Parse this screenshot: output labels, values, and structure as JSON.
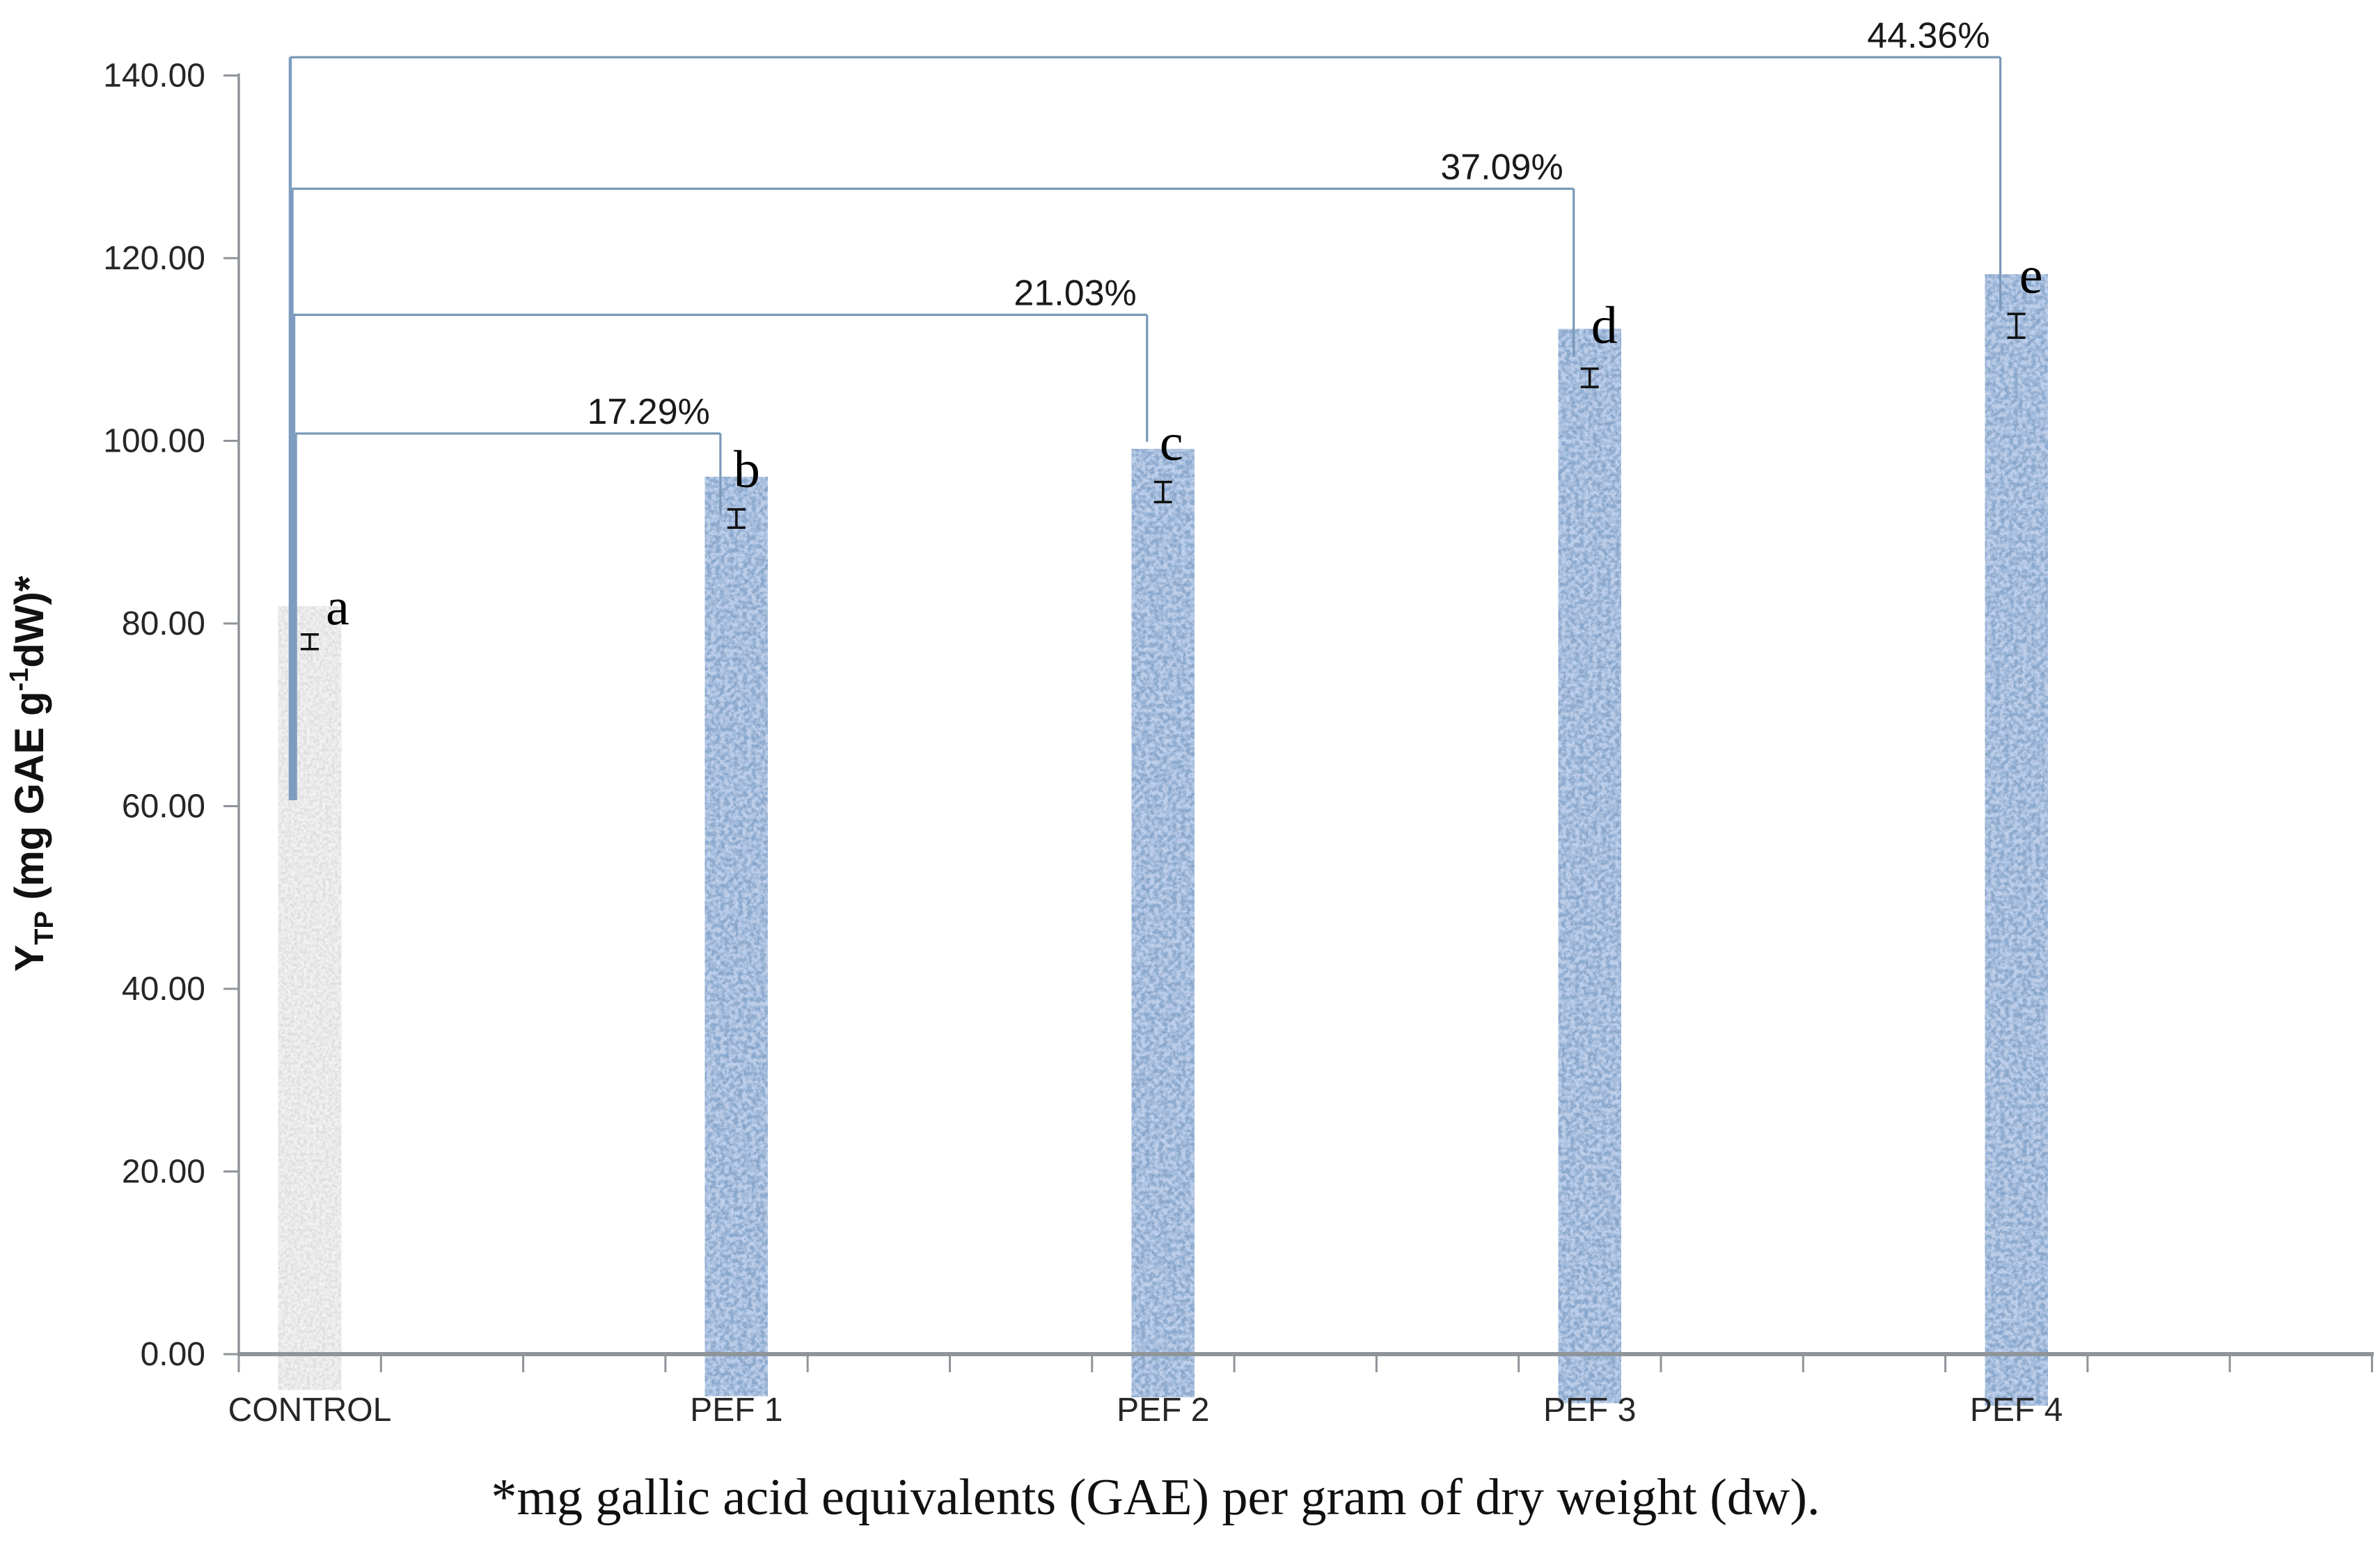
{
  "chart_data": {
    "type": "bar",
    "title": "",
    "xlabel": "",
    "ylabel_plain": "YTP (mg GAE g-1dW)*",
    "ylabel_parts": [
      {
        "t": "Y",
        "style": "normal"
      },
      {
        "t": "TP",
        "style": "sub"
      },
      {
        "t": " (mg GAE g",
        "style": "normal"
      },
      {
        "t": "-1",
        "style": "sup"
      },
      {
        "t": "dW)*",
        "style": "normal"
      }
    ],
    "footnote": "*mg gallic acid equivalents (GAE) per gram of dry weight (dw).",
    "categories": [
      "CONTROL",
      "PEF 1",
      "PEF 2",
      "PEF 3",
      "PEF 4"
    ],
    "values": [
      78.0,
      91.5,
      94.4,
      106.9,
      112.6
    ],
    "errors": [
      0.8,
      1.0,
      1.1,
      1.0,
      1.3
    ],
    "significance_letters": [
      "a",
      "b",
      "c",
      "d",
      "e"
    ],
    "bar_textures": [
      "gray-granite-speckle",
      "blue-denim-speckle",
      "blue-denim-speckle",
      "blue-denim-speckle",
      "blue-denim-speckle"
    ],
    "ylim": [
      0,
      140
    ],
    "ytick_step": 20,
    "yticks": [
      "0.00",
      "20.00",
      "40.00",
      "60.00",
      "80.00",
      "100.00",
      "120.00",
      "140.00"
    ],
    "grid": "off",
    "legend": "none",
    "brackets": [
      {
        "label": "17.29%",
        "from": "CONTROL",
        "to": "PEF 1",
        "to_index": 1,
        "level": 100.8,
        "drop_end": 91.9
      },
      {
        "label": "21.03%",
        "from": "CONTROL",
        "to": "PEF 2",
        "to_index": 2,
        "level": 113.8,
        "drop_end": 99.9
      },
      {
        "label": "37.09%",
        "from": "CONTROL",
        "to": "PEF 3",
        "to_index": 3,
        "level": 127.6,
        "drop_end": 109.2
      },
      {
        "label": "44.36%",
        "from": "CONTROL",
        "to": "PEF 4",
        "to_index": 4,
        "level": 142.0,
        "drop_end": 114.2
      }
    ],
    "colors": {
      "background": "#ffffff",
      "axis": "#8f9499",
      "tick_text": "#262626",
      "bracket_line": "#7b98b8",
      "bracket_left_vertical": "#7e9cc0",
      "error_bar": "#111111",
      "letter_text": "#000000",
      "percent_text": "#1a1a1a",
      "bar_blue_base": "#5f7fb2",
      "bar_blue_dark": "#2e4a7c",
      "bar_blue_light": "#c3d2e8",
      "bar_gray_base": "#d9d9d9",
      "bar_gray_dark": "#3a3a3a"
    }
  }
}
